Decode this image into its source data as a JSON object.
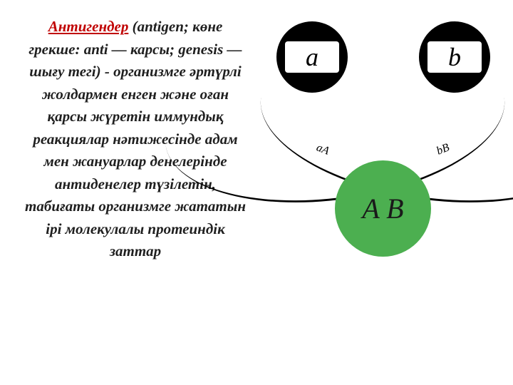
{
  "text": {
    "term": "Антигендер",
    "body": " (antigen; көне грекше: anti — карсы; genesis — шығу тегі) - организмге әртүрлі жолдармен енген және оған қарсы жүретін иммундық реакциялар нәтижесінде адам мен жануарлар денелерінде антиденелер түзілетін, табиғаты организмге жататын ірі молекулалы протеиндік заттар",
    "term_color": "#c00000",
    "body_color": "#1f1f1f",
    "font_size_pt": 21
  },
  "diagram": {
    "type": "network",
    "background_color": "#ffffff",
    "nodes": {
      "a": {
        "label": "a",
        "shape": "circle",
        "fill": "#000000",
        "slot_fill": "#ffffff",
        "label_color": "#000000",
        "label_fontsize": 36
      },
      "b": {
        "label": "b",
        "shape": "circle",
        "fill": "#000000",
        "slot_fill": "#ffffff",
        "label_color": "#000000",
        "label_fontsize": 36
      },
      "ab": {
        "label": "A B",
        "shape": "circle",
        "fill": "#4caf50",
        "label_color": "#1a1a1a",
        "label_fontsize": 40
      }
    },
    "arcs": {
      "stroke": "#000000",
      "stroke_width": 3,
      "labels": {
        "aA": "aA",
        "bB": "bB",
        "fontsize": 16
      }
    }
  }
}
